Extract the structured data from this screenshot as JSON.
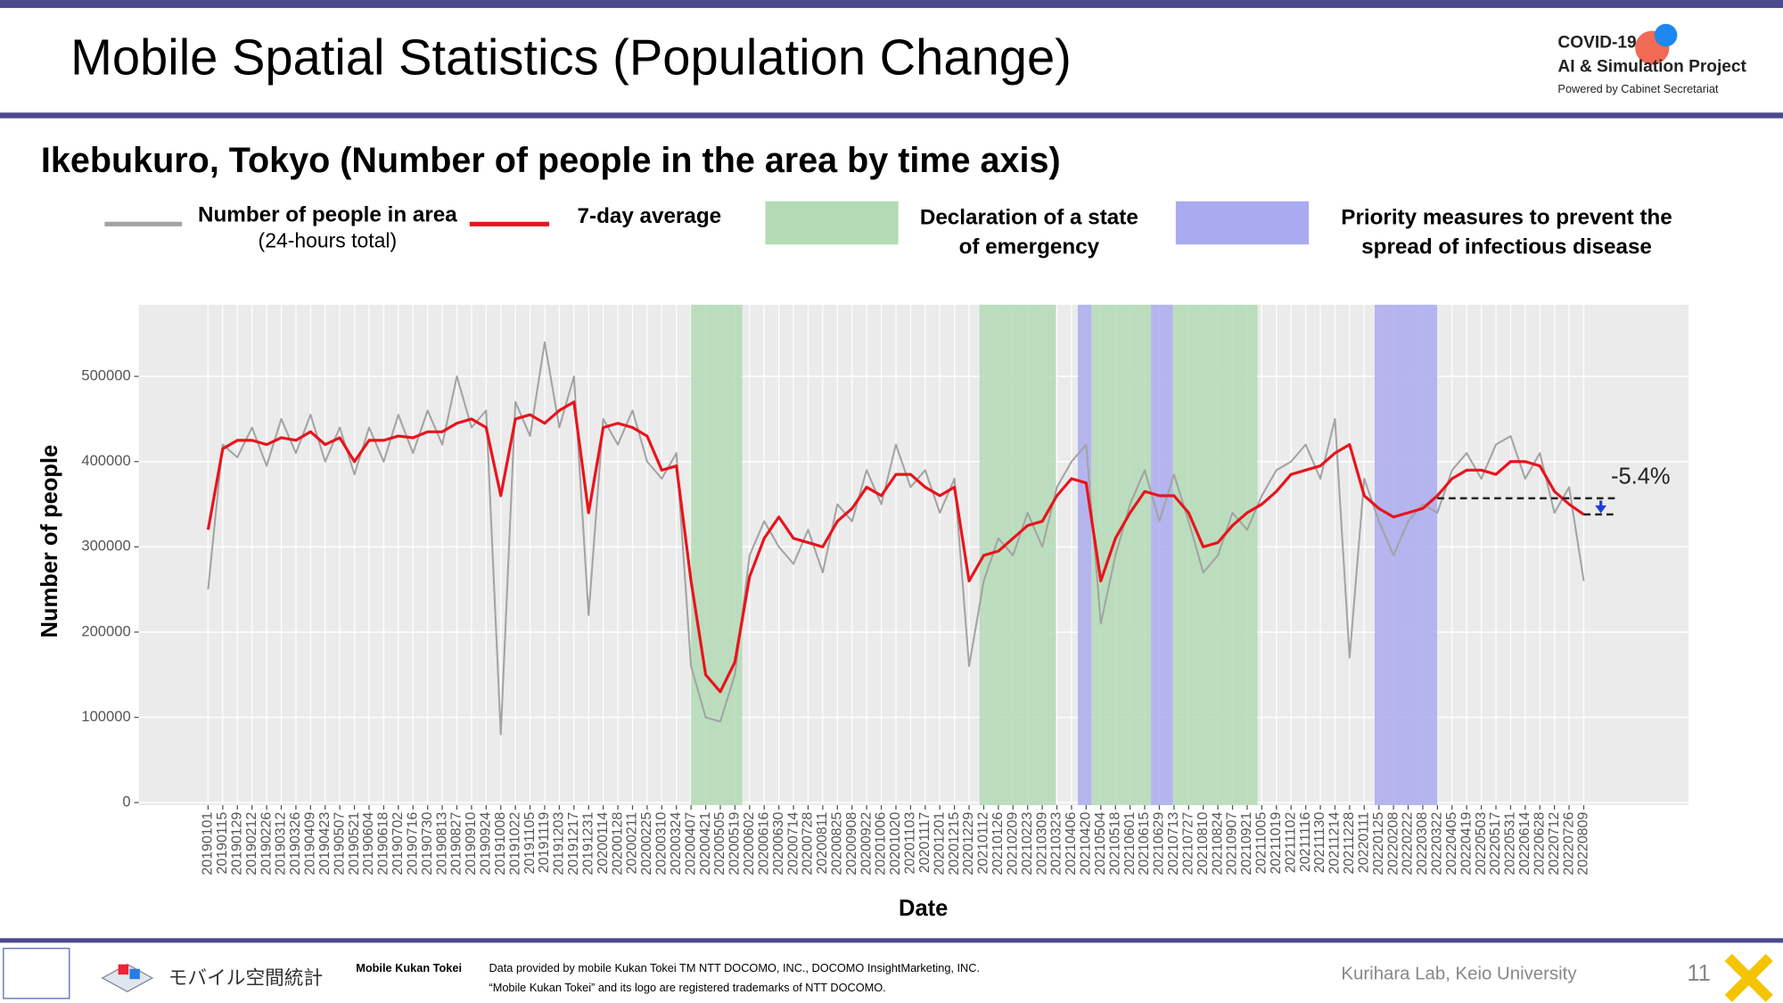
{
  "header": {
    "title": "Mobile Spatial Statistics (Population Change)",
    "logo": [
      "COVID-19",
      "AI & Simulation Project",
      "Powered by Cabinet Secretariat"
    ]
  },
  "subtitle": "Ikebukuro, Tokyo (Number of people in the area by time axis)",
  "chart_data": {
    "type": "line",
    "x_label": "Date",
    "y_label": "Number of people",
    "categories": [
      "20190101",
      "20190115",
      "20190129",
      "20190212",
      "20190226",
      "20190312",
      "20190326",
      "20190409",
      "20190423",
      "20190507",
      "20190521",
      "20190604",
      "20190618",
      "20190702",
      "20190716",
      "20190730",
      "20190813",
      "20190827",
      "20190910",
      "20190924",
      "20191008",
      "20191022",
      "20191105",
      "20191119",
      "20191203",
      "20191217",
      "20191231",
      "20200114",
      "20200128",
      "20200211",
      "20200225",
      "20200310",
      "20200324",
      "20200407",
      "20200421",
      "20200505",
      "20200519",
      "20200602",
      "20200616",
      "20200630",
      "20200714",
      "20200728",
      "20200811",
      "20200825",
      "20200908",
      "20200922",
      "20201006",
      "20201020",
      "20201103",
      "20201117",
      "20201201",
      "20201215",
      "20201229",
      "20210112",
      "20210126",
      "20210209",
      "20210223",
      "20210309",
      "20210323",
      "20210406",
      "20210420",
      "20210504",
      "20210518",
      "20210601",
      "20210615",
      "20210629",
      "20210713",
      "20210727",
      "20210810",
      "20210824",
      "20210907",
      "20210921",
      "20211005",
      "20211019",
      "20211102",
      "20211116",
      "20211130",
      "20211214",
      "20211228",
      "20220111",
      "20220125",
      "20220208",
      "20220222",
      "20220308",
      "20220322",
      "20220405",
      "20220419",
      "20220503",
      "20220517",
      "20220531",
      "20220614",
      "20220628",
      "20220712",
      "20220726",
      "20220809"
    ],
    "series": [
      {
        "name": "Number of people in area",
        "name_note": "(24-hours total)",
        "color": "#a3a3a3",
        "values": [
          250000,
          420000,
          405000,
          440000,
          395000,
          450000,
          410000,
          455000,
          400000,
          440000,
          385000,
          440000,
          400000,
          455000,
          410000,
          460000,
          420000,
          500000,
          440000,
          460000,
          80000,
          470000,
          430000,
          540000,
          440000,
          500000,
          220000,
          450000,
          420000,
          460000,
          400000,
          380000,
          410000,
          160000,
          100000,
          95000,
          150000,
          290000,
          330000,
          300000,
          280000,
          320000,
          270000,
          350000,
          330000,
          390000,
          350000,
          420000,
          370000,
          390000,
          340000,
          380000,
          160000,
          260000,
          310000,
          290000,
          340000,
          300000,
          370000,
          400000,
          420000,
          210000,
          290000,
          350000,
          390000,
          330000,
          385000,
          330000,
          270000,
          290000,
          340000,
          320000,
          360000,
          390000,
          400000,
          420000,
          380000,
          450000,
          170000,
          380000,
          330000,
          290000,
          330000,
          350000,
          340000,
          390000,
          410000,
          380000,
          420000,
          430000,
          380000,
          410000,
          340000,
          370000,
          260000
        ]
      },
      {
        "name": "7-day average",
        "color": "#e8141c",
        "values": [
          320000,
          415000,
          425000,
          425000,
          420000,
          428000,
          425000,
          435000,
          420000,
          428000,
          400000,
          425000,
          425000,
          430000,
          428000,
          435000,
          435000,
          445000,
          450000,
          440000,
          360000,
          450000,
          455000,
          445000,
          460000,
          470000,
          340000,
          440000,
          445000,
          440000,
          430000,
          390000,
          395000,
          260000,
          150000,
          130000,
          165000,
          265000,
          310000,
          335000,
          310000,
          305000,
          300000,
          330000,
          345000,
          370000,
          360000,
          385000,
          385000,
          370000,
          360000,
          370000,
          260000,
          290000,
          295000,
          310000,
          325000,
          330000,
          360000,
          380000,
          375000,
          260000,
          310000,
          340000,
          365000,
          360000,
          360000,
          340000,
          300000,
          305000,
          325000,
          340000,
          350000,
          365000,
          385000,
          390000,
          395000,
          410000,
          420000,
          360000,
          345000,
          335000,
          340000,
          345000,
          360000,
          380000,
          390000,
          390000,
          385000,
          400000,
          400000,
          395000,
          365000,
          350000,
          338000
        ]
      }
    ],
    "emergency": {
      "label": [
        "Declaration of a state",
        "of emergency"
      ],
      "color": "#b3dbb5",
      "periods": [
        [
          "20200407",
          "20200525"
        ],
        [
          "20210108",
          "20210321"
        ],
        [
          "20210425",
          "20210620"
        ],
        [
          "20210712",
          "20210930"
        ]
      ]
    },
    "priority": {
      "label": [
        "Priority measures to prevent the",
        "spread of infectious disease"
      ],
      "color": "#aaaaf0",
      "periods": [
        [
          "20210412",
          "20210424"
        ],
        [
          "20210621",
          "20210711"
        ],
        [
          "20220121",
          "20220321"
        ]
      ]
    },
    "annotation": {
      "text": "-5.4%",
      "from": 357000,
      "to": 338000
    },
    "ylim": [
      -3000,
      584000
    ],
    "yticks": [
      0,
      100000,
      200000,
      300000,
      400000,
      500000
    ],
    "grid": true
  },
  "footer": {
    "brand": "モバイル空間統計",
    "brand_en": "Mobile Kukan Tokei",
    "notes": [
      "Data provided by mobile Kukan Tokei TM NTT DOCOMO, INC., DOCOMO InsightMarketing, INC.",
      "“Mobile Kukan Tokei” and its logo are registered trademarks of NTT DOCOMO."
    ],
    "credit": "Kurihara Lab, Keio University",
    "page": "11"
  }
}
